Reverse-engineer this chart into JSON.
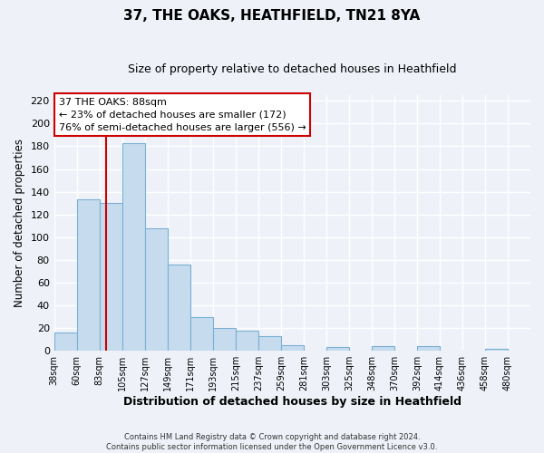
{
  "title": "37, THE OAKS, HEATHFIELD, TN21 8YA",
  "subtitle": "Size of property relative to detached houses in Heathfield",
  "xlabel": "Distribution of detached houses by size in Heathfield",
  "ylabel": "Number of detached properties",
  "bar_labels": [
    "38sqm",
    "60sqm",
    "83sqm",
    "105sqm",
    "127sqm",
    "149sqm",
    "171sqm",
    "193sqm",
    "215sqm",
    "237sqm",
    "259sqm",
    "281sqm",
    "303sqm",
    "325sqm",
    "348sqm",
    "370sqm",
    "392sqm",
    "414sqm",
    "436sqm",
    "458sqm",
    "480sqm"
  ],
  "bar_heights": [
    16,
    133,
    130,
    183,
    108,
    76,
    30,
    20,
    18,
    13,
    5,
    0,
    3,
    0,
    4,
    0,
    4,
    0,
    0,
    2,
    0
  ],
  "bar_color": "#c6dcee",
  "bar_edge_color": "#7bafd4",
  "vline_color": "#cc0000",
  "annotation_title": "37 THE OAKS: 88sqm",
  "annotation_line1": "← 23% of detached houses are smaller (172)",
  "annotation_line2": "76% of semi-detached houses are larger (556) →",
  "annotation_box_color": "#ffffff",
  "annotation_box_edge": "#cc0000",
  "ylim": [
    0,
    225
  ],
  "yticks": [
    0,
    20,
    40,
    60,
    80,
    100,
    120,
    140,
    160,
    180,
    200,
    220
  ],
  "footer_line1": "Contains HM Land Registry data © Crown copyright and database right 2024.",
  "footer_line2": "Contains public sector information licensed under the Open Government Licence v3.0.",
  "bg_color": "#eef2f8",
  "grid_color": "#ffffff",
  "bin_width": 22,
  "vline_x_sqm": 88
}
